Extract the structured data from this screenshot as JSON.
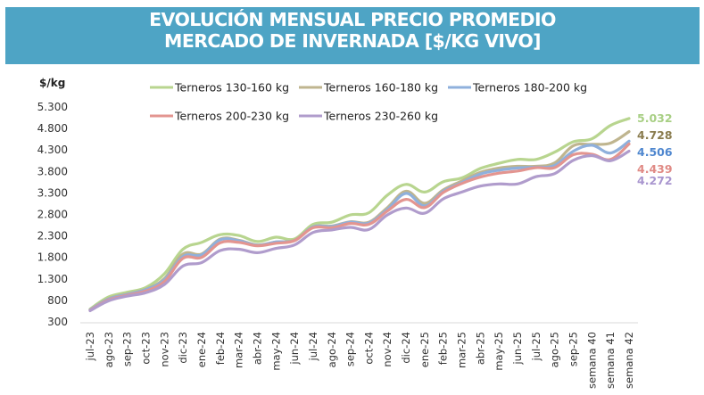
{
  "chart_data": {
    "type": "line",
    "title": "EVOLUCIÓN MENSUAL PRECIO PROMEDIO MERCADO DE INVERNADA [$/KG VIVO]",
    "title_lines": [
      "EVOLUCIÓN MENSUAL PRECIO PROMEDIO",
      "MERCADO DE INVERNADA [$/KG VIVO]"
    ],
    "xlabel": "",
    "ylabel": "$/kg",
    "ylim": [
      300,
      5300
    ],
    "yticks": [
      300,
      800,
      1300,
      1800,
      2300,
      2800,
      3300,
      3800,
      4300,
      4800,
      5300
    ],
    "ytick_labels": [
      "300",
      "800",
      "1.300",
      "1.800",
      "2.300",
      "2.800",
      "3.300",
      "3.800",
      "4.300",
      "4.800",
      "5.300"
    ],
    "grid": false,
    "legend_position": "top",
    "categories": [
      "jul-23",
      "ago-23",
      "sep-23",
      "oct-23",
      "nov-23",
      "dic-23",
      "ene-24",
      "feb-24",
      "mar-24",
      "abr-24",
      "may-24",
      "jun-24",
      "jul-24",
      "ago-24",
      "sep-24",
      "oct-24",
      "nov-24",
      "dic-24",
      "ene-25",
      "feb-25",
      "mar-25",
      "abr-25",
      "may-25",
      "jun-25",
      "jul-25",
      "ago-25",
      "sep-25",
      "semana 40",
      "semana 41",
      "semana 42"
    ],
    "series": [
      {
        "name": "Terneros 130-160 kg",
        "color": "#b8d58f",
        "values": [
          600,
          880,
          990,
          1100,
          1420,
          1990,
          2150,
          2330,
          2310,
          2170,
          2270,
          2230,
          2570,
          2620,
          2790,
          2840,
          3250,
          3500,
          3320,
          3560,
          3650,
          3870,
          3990,
          4080,
          4080,
          4250,
          4490,
          4560,
          4870,
          5032
        ],
        "end_label": "5.032"
      },
      {
        "name": "Terneros 160-180 kg",
        "color": "#bfb58f",
        "values": [
          580,
          840,
          950,
          1060,
          1310,
          1880,
          1880,
          2230,
          2200,
          2090,
          2160,
          2200,
          2510,
          2530,
          2630,
          2620,
          2960,
          3340,
          3060,
          3370,
          3580,
          3780,
          3880,
          3920,
          3920,
          4000,
          4400,
          4430,
          4460,
          4728
        ],
        "end_label": "4.728"
      },
      {
        "name": "Terneros 180-200 kg",
        "color": "#8fb0dc",
        "values": [
          580,
          830,
          940,
          1050,
          1280,
          1820,
          1860,
          2210,
          2190,
          2080,
          2160,
          2190,
          2510,
          2520,
          2620,
          2600,
          2920,
          3290,
          3000,
          3340,
          3540,
          3740,
          3830,
          3880,
          3900,
          3940,
          4270,
          4410,
          4230,
          4506
        ],
        "end_label": "4.506"
      },
      {
        "name": "Terneros 200-230 kg",
        "color": "#e39590",
        "values": [
          570,
          810,
          920,
          1020,
          1240,
          1780,
          1800,
          2140,
          2150,
          2070,
          2130,
          2190,
          2490,
          2490,
          2590,
          2570,
          2880,
          3150,
          2960,
          3310,
          3520,
          3670,
          3760,
          3810,
          3890,
          3890,
          4190,
          4200,
          4080,
          4439
        ],
        "end_label": "4.439"
      },
      {
        "name": "Terneros 230-260 kg",
        "color": "#b09ccc",
        "values": [
          560,
          790,
          900,
          980,
          1170,
          1600,
          1680,
          1960,
          1990,
          1910,
          2010,
          2090,
          2380,
          2440,
          2500,
          2450,
          2790,
          2950,
          2830,
          3160,
          3320,
          3460,
          3510,
          3510,
          3680,
          3750,
          4060,
          4170,
          4050,
          4272
        ],
        "end_label": "4.272"
      }
    ],
    "end_label_colors": [
      "#a8cf84",
      "#8a7c4e",
      "#4f87cf",
      "#e08a85",
      "#a996cf"
    ]
  }
}
